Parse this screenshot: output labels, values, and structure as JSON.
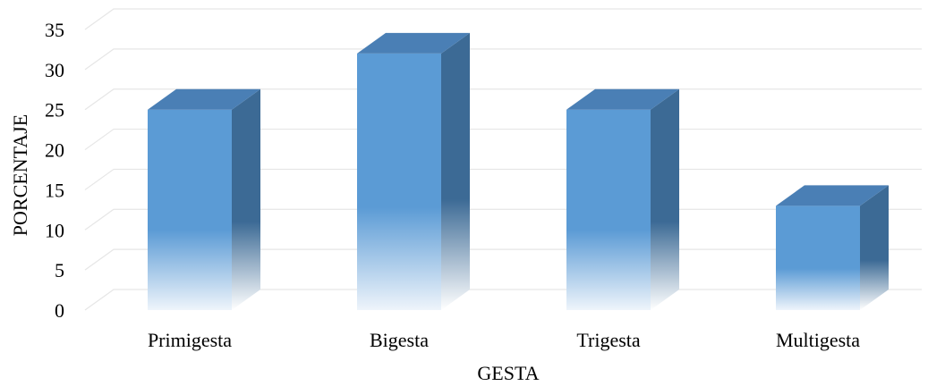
{
  "chart_data": {
    "type": "bar",
    "style": "3d-column",
    "categories": [
      "Primigesta",
      "Bigesta",
      "Trigesta",
      "Multigesta"
    ],
    "values": [
      25,
      32,
      25,
      13
    ],
    "ylim": [
      0,
      35
    ],
    "yticks": [
      0,
      5,
      10,
      15,
      20,
      25,
      30,
      35
    ],
    "xlabel": "GESTA",
    "ylabel": "PORCENTAJE",
    "grid": true,
    "legend": "none"
  },
  "colors": {
    "bar_front": "#5b9bd5",
    "bar_side": "#3a6a96",
    "bar_top": "#4a7fb5",
    "grid": "#e6e6e6"
  }
}
